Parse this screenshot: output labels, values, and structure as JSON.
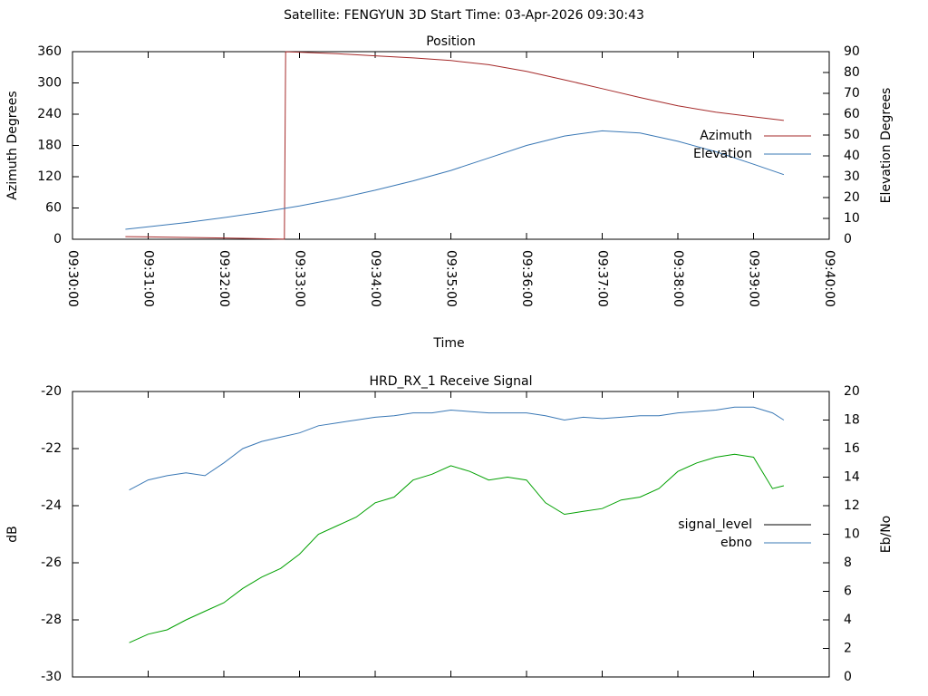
{
  "title": "Satellite: FENGYUN 3D    Start Time: 03-Apr-2026 09:30:43",
  "chart_data": [
    {
      "type": "line",
      "title": "Position",
      "xlabel": "Time",
      "ylabel": "Azimuth Degrees",
      "y2label": "Elevation Degrees",
      "xlim": [
        "09:30:00",
        "09:40:00"
      ],
      "xticks": [
        "09:30:00",
        "09:31:00",
        "09:32:00",
        "09:33:00",
        "09:34:00",
        "09:35:00",
        "09:36:00",
        "09:37:00",
        "09:38:00",
        "09:39:00",
        "09:40:00"
      ],
      "ylim": [
        0,
        360
      ],
      "yticks": [
        0,
        60,
        120,
        180,
        240,
        300,
        360
      ],
      "y2lim": [
        0,
        90
      ],
      "y2ticks": [
        0,
        10,
        20,
        30,
        40,
        50,
        60,
        70,
        80,
        90
      ],
      "legend": "right",
      "x": [
        "09:30:42",
        "09:31:00",
        "09:31:30",
        "09:32:00",
        "09:32:30",
        "09:32:48",
        "09:32:49",
        "09:33:00",
        "09:33:30",
        "09:34:00",
        "09:34:30",
        "09:35:00",
        "09:35:30",
        "09:36:00",
        "09:36:30",
        "09:37:00",
        "09:37:30",
        "09:38:00",
        "09:38:30",
        "09:39:00",
        "09:39:24"
      ],
      "series": [
        {
          "name": "Azimuth",
          "color": "#a52a2a",
          "values": [
            5,
            4.5,
            3.5,
            2.5,
            1,
            0.2,
            359.8,
            359,
            356,
            352,
            348,
            343,
            335,
            322,
            306,
            289,
            272,
            256,
            244,
            235,
            228
          ]
        },
        {
          "name": "Elevation",
          "color": "#3a78b5",
          "axis": "y2",
          "values": [
            4.8,
            6,
            8,
            10.4,
            13,
            14.8,
            14.9,
            16,
            19.5,
            23.5,
            28,
            33,
            39,
            45,
            49.5,
            52,
            51,
            47,
            42,
            36,
            31
          ]
        }
      ]
    },
    {
      "type": "line",
      "title": "HRD_RX_1 Receive Signal",
      "ylabel": "dB",
      "y2label": "Eb/No",
      "xlim": [
        "09:30:00",
        "09:40:00"
      ],
      "ylim": [
        -30,
        -20
      ],
      "yticks": [
        -30,
        -28,
        -26,
        -24,
        -22,
        -20
      ],
      "y2lim": [
        0,
        20
      ],
      "y2ticks": [
        0,
        2,
        4,
        6,
        8,
        10,
        12,
        14,
        16,
        18,
        20
      ],
      "legend": "right",
      "x": [
        "09:30:45",
        "09:31:00",
        "09:31:15",
        "09:31:30",
        "09:31:45",
        "09:32:00",
        "09:32:15",
        "09:32:30",
        "09:32:45",
        "09:33:00",
        "09:33:15",
        "09:33:30",
        "09:33:45",
        "09:34:00",
        "09:34:15",
        "09:34:30",
        "09:34:45",
        "09:35:00",
        "09:35:15",
        "09:35:30",
        "09:35:45",
        "09:36:00",
        "09:36:15",
        "09:36:30",
        "09:36:45",
        "09:37:00",
        "09:37:15",
        "09:37:30",
        "09:37:45",
        "09:38:00",
        "09:38:15",
        "09:38:30",
        "09:38:45",
        "09:39:00",
        "09:39:15",
        "09:39:24"
      ],
      "series": [
        {
          "name": "signal_level",
          "color": "#00a000",
          "legend_color": "#000000",
          "values": [
            -28.8,
            -28.5,
            -28.35,
            -28.0,
            -27.7,
            -27.4,
            -26.9,
            -26.5,
            -26.2,
            -25.7,
            -25.0,
            -24.7,
            -24.4,
            -23.9,
            -23.7,
            -23.1,
            -22.9,
            -22.6,
            -22.8,
            -23.1,
            -23.0,
            -23.1,
            -23.9,
            -24.3,
            -24.2,
            -24.1,
            -23.8,
            -23.7,
            -23.4,
            -22.8,
            -22.5,
            -22.3,
            -22.2,
            -22.3,
            -23.4,
            -23.3
          ]
        },
        {
          "name": "ebno",
          "color": "#3a78b5",
          "axis": "y2",
          "values": [
            13.1,
            13.8,
            14.1,
            14.3,
            14.1,
            15.0,
            16.0,
            16.5,
            16.8,
            17.1,
            17.6,
            17.8,
            18.0,
            18.2,
            18.3,
            18.5,
            18.5,
            18.7,
            18.6,
            18.5,
            18.5,
            18.5,
            18.3,
            18.0,
            18.2,
            18.1,
            18.2,
            18.3,
            18.3,
            18.5,
            18.6,
            18.7,
            18.9,
            18.9,
            18.5,
            18.0
          ]
        }
      ]
    }
  ]
}
